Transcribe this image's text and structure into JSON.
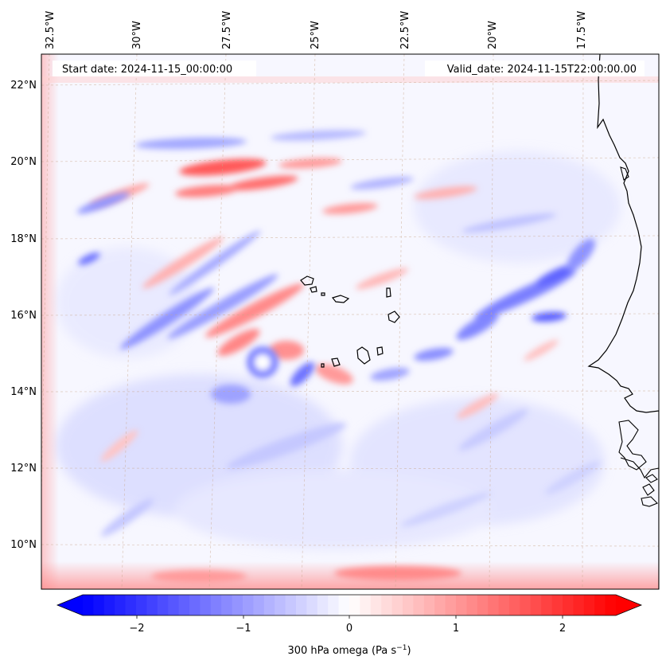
{
  "map": {
    "start_label": "Start date: 2024-11-15_00:00:00",
    "valid_label": "Valid_date: 2024-11-15T22:00:00.00",
    "lon_labels": [
      "32.5°W",
      "30°W",
      "27.5°W",
      "25°W",
      "22.5°W",
      "20°W",
      "17.5°W"
    ],
    "lat_labels": [
      "22°N",
      "20°N",
      "18°N",
      "16°N",
      "14°N",
      "12°N",
      "10°N"
    ],
    "lon_range": [
      -32.8,
      -15.7
    ],
    "lat_range": [
      8.9,
      22.8
    ]
  },
  "colorbar": {
    "label_text": "300 hPa omega (Pa s",
    "label_sup": "−1",
    "label_close": ")",
    "tick_labels": [
      "−2",
      "−1",
      "0",
      "1",
      "2"
    ],
    "range": [
      -2.5,
      2.5
    ],
    "neg_color": "#0000ff",
    "mid_color": "#ffffff",
    "pos_color": "#ff0000"
  }
}
